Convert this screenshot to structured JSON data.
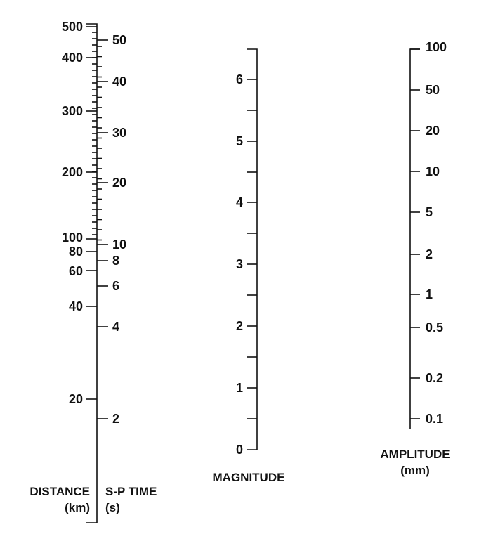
{
  "scales": {
    "distance": {
      "title_line1": "DISTANCE",
      "title_line2": "(km)",
      "tick_labels": [
        "500",
        "400",
        "300",
        "200",
        "100",
        "80",
        "60",
        "40",
        "20"
      ]
    },
    "sp_time": {
      "title_line1": "S-P TIME",
      "title_line2": "(s)",
      "tick_labels": [
        "50",
        "40",
        "30",
        "20",
        "10",
        "8",
        "6",
        "4",
        "2"
      ]
    },
    "magnitude": {
      "title": "MAGNITUDE",
      "tick_labels": [
        "6",
        "5",
        "4",
        "3",
        "2",
        "1",
        "0"
      ]
    },
    "amplitude": {
      "title_line1": "AMPLITUDE",
      "title_line2": "(mm)",
      "tick_labels": [
        "100",
        "50",
        "20",
        "10",
        "5",
        "2",
        "1",
        "0.5",
        "0.2",
        "0.1"
      ]
    }
  }
}
